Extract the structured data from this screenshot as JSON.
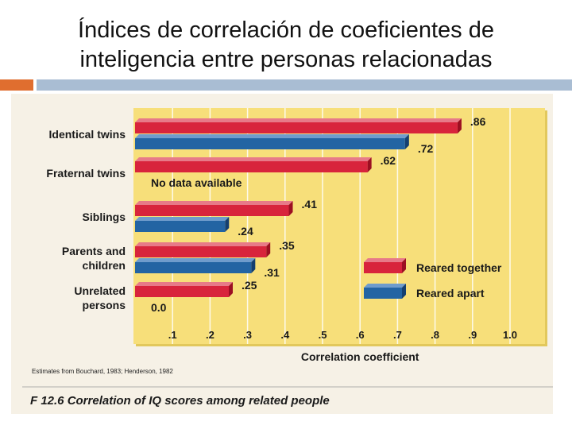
{
  "slide": {
    "title_line1": "Índices de correlación de coeficientes de",
    "title_line2": "inteligencia entre personas relacionadas"
  },
  "colors": {
    "together": "#d8243c",
    "together_top": "#e77a88",
    "together_side": "#9c0f22",
    "apart": "#2364a3",
    "apart_top": "#6f9ccc",
    "apart_side": "#143f70",
    "panel": "#f7df7a",
    "panel_shadow": "#e2c85c"
  },
  "chart_data": {
    "type": "bar",
    "orientation": "horizontal",
    "categories": [
      {
        "lines": [
          "Identical twins"
        ]
      },
      {
        "lines": [
          "Fraternal twins"
        ]
      },
      {
        "lines": [
          "Siblings"
        ]
      },
      {
        "lines": [
          "Parents and",
          "children"
        ]
      },
      {
        "lines": [
          "Unrelated",
          "persons"
        ]
      }
    ],
    "series": [
      {
        "name": "Reared together",
        "values": [
          0.86,
          0.62,
          0.41,
          0.35,
          0.25
        ],
        "labels": [
          ".86",
          ".62",
          ".41",
          ".35",
          ".25"
        ]
      },
      {
        "name": "Reared apart",
        "values": [
          0.72,
          null,
          0.24,
          0.31,
          0.0
        ],
        "labels": [
          ".72",
          "No data available",
          ".24",
          ".31",
          "0.0"
        ]
      }
    ],
    "xlim": [
      0,
      1.0
    ],
    "xticks": [
      0.1,
      0.2,
      0.3,
      0.4,
      0.5,
      0.6,
      0.7,
      0.8,
      0.9,
      1.0
    ],
    "xtick_labels": [
      ".1",
      ".2",
      ".3",
      ".4",
      ".5",
      ".6",
      ".7",
      ".8",
      ".9",
      "1.0"
    ],
    "xlabel": "Correlation coefficient",
    "legend": [
      "Reared together",
      "Reared apart"
    ],
    "legend_position": "bottom-right",
    "source_note": "Estimates from Bouchard, 1983; Henderson, 1982",
    "caption": "F 12.6   Correlation of IQ scores among related people"
  }
}
